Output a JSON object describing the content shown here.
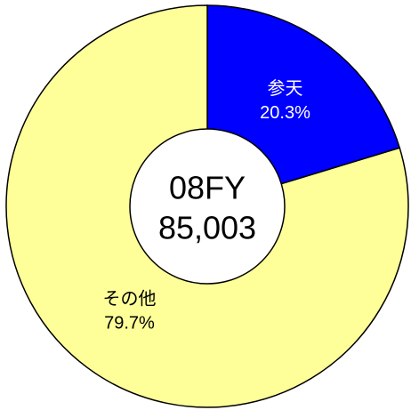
{
  "chart_data": {
    "type": "donut",
    "categories": [
      "参天",
      "その他"
    ],
    "values": [
      20.3,
      79.7
    ],
    "value_labels": [
      "20.3%",
      "79.7%"
    ],
    "colors": [
      "#0000ff",
      "#ffff99"
    ],
    "center_title": "08FY",
    "total": {
      "value": 85003,
      "label": "85,003"
    }
  }
}
